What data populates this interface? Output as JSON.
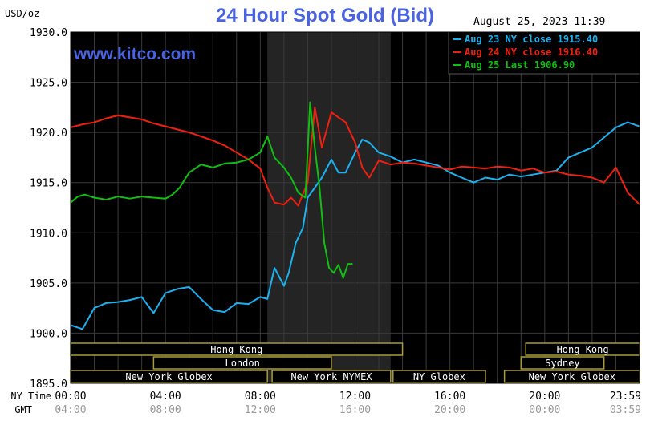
{
  "header": {
    "title": "24 Hour Spot Gold (Bid)",
    "unit": "USD/oz",
    "timestamp": "August 25, 2023 11:39",
    "watermark": "www.kitco.com"
  },
  "colors": {
    "background": "#000000",
    "grid": "#3a3a3a",
    "highlight": "#242424",
    "axis_text": "#000000",
    "bar_border": "#a89a3a",
    "bar_text": "#000000",
    "bar_fill": "#000000",
    "watermark": "#4a63e0"
  },
  "market_sessions": {
    "y_labels": [
      "NY Time",
      "GMT"
    ],
    "bars": [
      {
        "label": "Hong Kong",
        "row": 0,
        "start": 0,
        "end": 14.0
      },
      {
        "label": "Hong Kong",
        "row": 0,
        "start": 19.2,
        "end": 24.0
      },
      {
        "label": "London",
        "row": 1,
        "start": 3.5,
        "end": 11.0
      },
      {
        "label": "Sydney",
        "row": 1,
        "start": 19.0,
        "end": 22.5
      },
      {
        "label": "New York Globex",
        "row": 2,
        "start": 0,
        "end": 8.3
      },
      {
        "label": "New York NYMEX",
        "row": 2,
        "start": 8.5,
        "end": 13.5
      },
      {
        "label": "NY Globex",
        "row": 2,
        "start": 13.6,
        "end": 17.5
      },
      {
        "label": "New York Globex",
        "row": 2,
        "start": 18.3,
        "end": 24.0
      }
    ]
  },
  "chart_data": {
    "type": "line",
    "title": "24 Hour Spot Gold (Bid)",
    "ylabel": "USD/oz",
    "ylim": [
      1895.0,
      1930.0
    ],
    "yticks": [
      1895.0,
      1900.0,
      1905.0,
      1910.0,
      1915.0,
      1920.0,
      1925.0,
      1930.0
    ],
    "ytick_labels": [
      "1895.0",
      "1900.0",
      "1905.0",
      "1910.0",
      "1915.0",
      "1920.0",
      "1925.0",
      "1930.0"
    ],
    "xlim": [
      0,
      24
    ],
    "xticks": [
      0,
      4,
      8,
      12,
      16,
      20,
      23.98
    ],
    "xtick_labels_ny": [
      "00:00",
      "04:00",
      "08:00",
      "12:00",
      "16:00",
      "20:00",
      "23:59"
    ],
    "xtick_labels_gmt": [
      "04:00",
      "08:00",
      "12:00",
      "16:00",
      "20:00",
      "00:00",
      "03:59"
    ],
    "highlight_range": [
      8.3,
      13.5
    ],
    "grid": true,
    "legend_position": "top-right",
    "series": [
      {
        "name": "Aug 23 NY close 1915.40",
        "color": "#1ab2f0",
        "x": [
          0,
          0.5,
          1,
          1.5,
          2,
          2.5,
          3,
          3.5,
          4,
          4.5,
          5,
          5.5,
          6,
          6.5,
          7,
          7.5,
          8,
          8.3,
          8.6,
          9,
          9.2,
          9.5,
          9.8,
          10,
          10.3,
          10.6,
          11,
          11.3,
          11.6,
          12,
          12.3,
          12.6,
          13,
          13.5,
          14,
          14.5,
          15,
          15.5,
          16,
          16.5,
          17,
          17.5,
          18,
          18.5,
          19,
          19.5,
          20,
          20.5,
          21,
          21.5,
          22,
          22.5,
          23,
          23.5,
          24
        ],
        "y": [
          1900.8,
          1900.4,
          1902.5,
          1903.0,
          1903.1,
          1903.3,
          1903.6,
          1902.0,
          1904.0,
          1904.4,
          1904.6,
          1903.4,
          1902.3,
          1902.1,
          1903.0,
          1902.9,
          1903.6,
          1903.4,
          1906.5,
          1904.7,
          1906.0,
          1909.0,
          1910.5,
          1913.5,
          1914.5,
          1915.5,
          1917.3,
          1916.0,
          1916.0,
          1918.0,
          1919.3,
          1919.0,
          1918.0,
          1917.6,
          1917.0,
          1917.3,
          1917.0,
          1916.7,
          1916.0,
          1915.5,
          1915.0,
          1915.5,
          1915.3,
          1915.8,
          1915.6,
          1915.8,
          1916.0,
          1916.2,
          1917.5,
          1918.0,
          1918.5,
          1919.5,
          1920.5,
          1921.0,
          1920.6
        ]
      },
      {
        "name": "Aug 24 NY close 1916.40",
        "color": "#f02010",
        "x": [
          0,
          0.5,
          1,
          1.5,
          2,
          2.5,
          3,
          3.5,
          4,
          4.5,
          5,
          5.5,
          6,
          6.5,
          7,
          7.5,
          8,
          8.3,
          8.6,
          9,
          9.3,
          9.6,
          10,
          10.3,
          10.6,
          11,
          11.3,
          11.6,
          12,
          12.3,
          12.6,
          13,
          13.5,
          14,
          14.5,
          15,
          15.5,
          16,
          16.5,
          17,
          17.5,
          18,
          18.5,
          19,
          19.5,
          20,
          20.5,
          21,
          21.5,
          22,
          22.5,
          23,
          23.5,
          24
        ],
        "y": [
          1920.5,
          1920.8,
          1921.0,
          1921.4,
          1921.7,
          1921.5,
          1921.3,
          1920.9,
          1920.6,
          1920.3,
          1920.0,
          1919.6,
          1919.2,
          1918.7,
          1918.0,
          1917.3,
          1916.4,
          1914.5,
          1913.0,
          1912.8,
          1913.5,
          1912.7,
          1915.0,
          1922.5,
          1918.5,
          1922.0,
          1921.5,
          1921.0,
          1919.0,
          1916.5,
          1915.5,
          1917.2,
          1916.8,
          1917.0,
          1916.9,
          1916.7,
          1916.5,
          1916.3,
          1916.6,
          1916.5,
          1916.4,
          1916.6,
          1916.5,
          1916.2,
          1916.4,
          1916.0,
          1916.1,
          1915.8,
          1915.7,
          1915.5,
          1915.0,
          1916.5,
          1914.0,
          1912.8
        ]
      },
      {
        "name": "Aug 25 Last 1906.90",
        "color": "#10c010",
        "x": [
          0,
          0.3,
          0.6,
          1,
          1.5,
          2,
          2.5,
          3,
          3.5,
          4,
          4.3,
          4.6,
          5,
          5.5,
          6,
          6.5,
          7,
          7.5,
          8,
          8.3,
          8.6,
          9,
          9.3,
          9.6,
          9.9,
          10.1,
          10.3,
          10.5,
          10.7,
          10.9,
          11.1,
          11.3,
          11.5,
          11.7,
          11.9
        ],
        "y": [
          1913.0,
          1913.6,
          1913.8,
          1913.5,
          1913.3,
          1913.6,
          1913.4,
          1913.6,
          1913.5,
          1913.4,
          1913.8,
          1914.5,
          1916.0,
          1916.8,
          1916.5,
          1916.9,
          1917.0,
          1917.3,
          1918.0,
          1919.6,
          1917.5,
          1916.5,
          1915.5,
          1914.0,
          1913.5,
          1923.0,
          1918.5,
          1914.5,
          1909.0,
          1906.5,
          1906.0,
          1906.8,
          1905.5,
          1906.9,
          1906.9
        ]
      }
    ]
  }
}
